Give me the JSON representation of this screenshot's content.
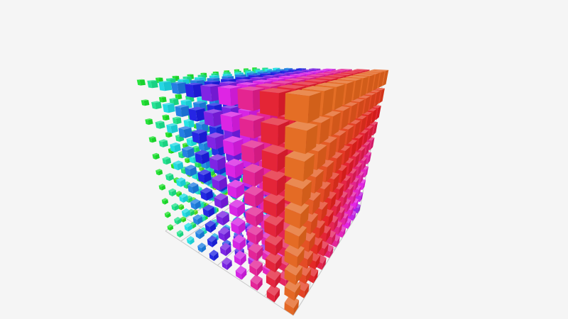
{
  "chart_data": {
    "type": "scatter3d",
    "symbol": "cube",
    "grid": true,
    "axis_labels_visible": false,
    "lattice": {
      "x_count": 10,
      "y_count": 10,
      "z_count": 10
    },
    "color_encoding": "hue",
    "background": "#f5f5f5",
    "grid_color": "#c8c8c8"
  }
}
